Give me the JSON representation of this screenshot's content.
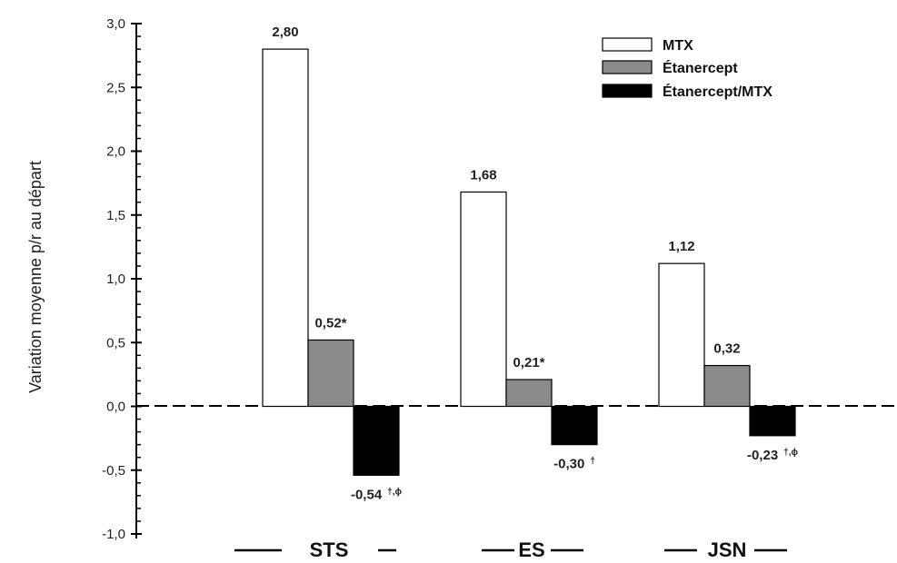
{
  "chart_data": {
    "type": "bar",
    "ylabel": "Variation moyenne p/r au départ",
    "xlabel": "",
    "ylim": [
      -1.0,
      3.0
    ],
    "yticks": [
      "-1,0",
      "-0,5",
      "0,0",
      "0,5",
      "1,0",
      "1,5",
      "2,0",
      "2,5",
      "3,0"
    ],
    "categories": [
      "STS",
      "ES",
      "JSN"
    ],
    "series": [
      {
        "name": "MTX",
        "color": "#ffffff",
        "values": [
          2.8,
          1.68,
          1.12
        ],
        "labels": [
          "2,80",
          "1,68",
          "1,12"
        ],
        "marks": [
          "",
          "",
          ""
        ]
      },
      {
        "name": "Étanercept",
        "color": "#8a8a8a",
        "values": [
          0.52,
          0.21,
          0.32
        ],
        "labels": [
          "0,52*",
          "0,21*",
          "0,32"
        ],
        "marks": [
          "",
          "",
          ""
        ]
      },
      {
        "name": "Étanercept/MTX",
        "color": "#000000",
        "values": [
          -0.54,
          -0.3,
          -0.23
        ],
        "labels": [
          "-0,54",
          "-0,30",
          "-0,23"
        ],
        "marks": [
          "†,ϕ",
          "†",
          "†,ϕ"
        ]
      }
    ],
    "legend_position": "top-right",
    "grid": false,
    "zero_line": "dashed"
  }
}
